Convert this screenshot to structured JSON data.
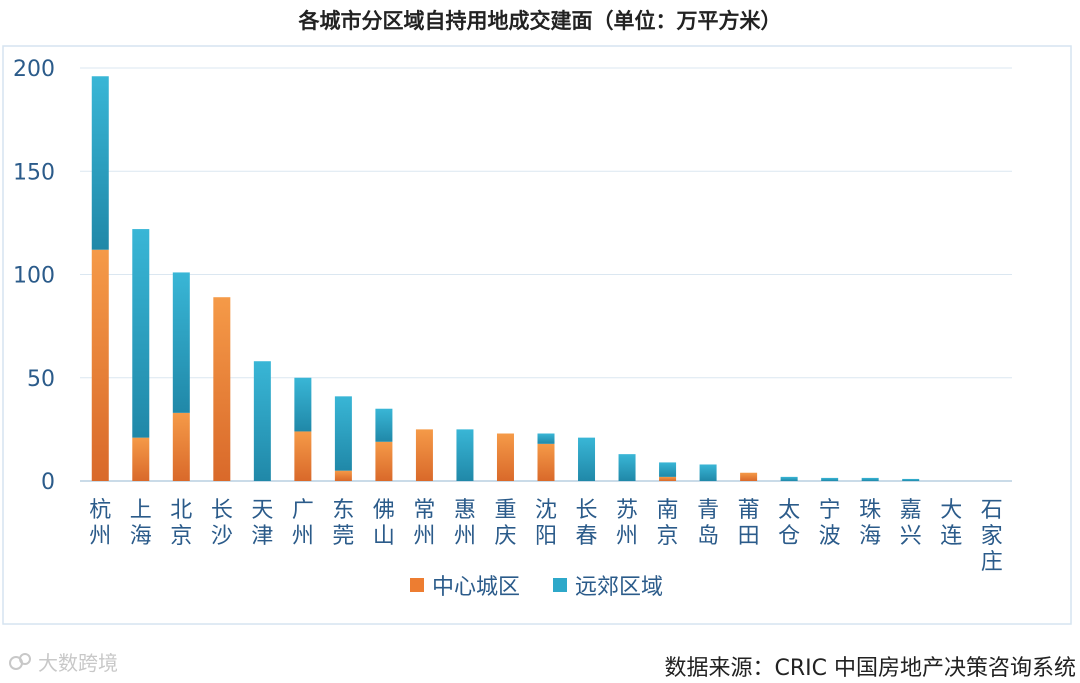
{
  "chart_data": {
    "type": "bar",
    "stacked": true,
    "title": "各城市分区域自持用地成交建面（单位：万平方米）",
    "categories": [
      "杭州",
      "上海",
      "北京",
      "长沙",
      "天津",
      "广州",
      "东莞",
      "佛山",
      "常州",
      "惠州",
      "重庆",
      "沈阳",
      "长春",
      "苏州",
      "南京",
      "青岛",
      "莆田",
      "太仓",
      "宁波",
      "珠海",
      "嘉兴",
      "大连",
      "石家庄"
    ],
    "series": [
      {
        "name": "中心城区",
        "color": "#ed7d31",
        "values": [
          112,
          21,
          33,
          89,
          0,
          24,
          5,
          19,
          25,
          0,
          23,
          18,
          0,
          0,
          2,
          0,
          4,
          0,
          0,
          0,
          0,
          0,
          0
        ]
      },
      {
        "name": "远郊区域",
        "color": "#2ea8c9",
        "values": [
          84,
          101,
          68,
          0,
          58,
          26,
          36,
          16,
          0,
          25,
          0,
          5,
          21,
          13,
          7,
          8,
          0,
          2,
          1.5,
          1.5,
          1,
          0,
          0
        ]
      }
    ],
    "yticks": [
      0,
      50,
      100,
      150,
      200
    ],
    "ylim": [
      0,
      200
    ],
    "grid": true,
    "legend": "bottom"
  },
  "footer": {
    "source": "数据来源：CRIC 中国房地产决策咨询系统",
    "watermark": "大数跨境"
  }
}
